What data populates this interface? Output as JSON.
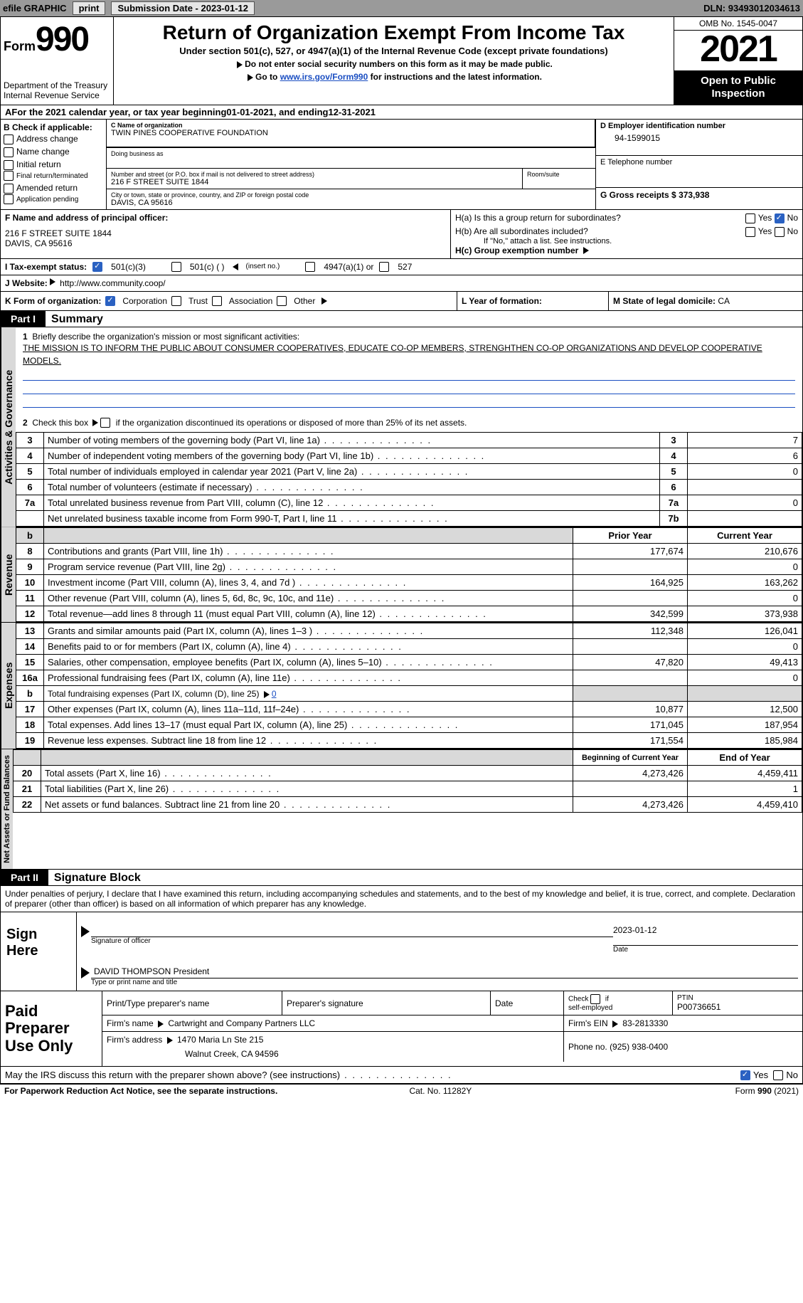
{
  "topbar": {
    "efile": "efile GRAPHIC",
    "print": "print",
    "sub_label": "Submission Date - ",
    "sub_date": "2023-01-12",
    "dln_label": "DLN: ",
    "dln": "93493012034613"
  },
  "header": {
    "form_word": "Form",
    "form_num": "990",
    "dept": "Department of the Treasury",
    "irs": "Internal Revenue Service",
    "title": "Return of Organization Exempt From Income Tax",
    "sub": "Under section 501(c), 527, or 4947(a)(1) of the Internal Revenue Code (except private foundations)",
    "note1": "Do not enter social security numbers on this form as it may be made public.",
    "note2_pre": "Go to ",
    "note2_link": "www.irs.gov/Form990",
    "note2_post": " for instructions and the latest information.",
    "omb": "OMB No. 1545-0047",
    "year": "2021",
    "inspection1": "Open to Public",
    "inspection2": "Inspection"
  },
  "periodA": {
    "text_pre": "For the 2021 calendar year, or tax year beginning ",
    "begin": "01-01-2021",
    "mid": " , and ending ",
    "end": "12-31-2021"
  },
  "boxB": {
    "title": "B Check if applicable:",
    "opts": [
      "Address change",
      "Name change",
      "Initial return",
      "Final return/terminated",
      "Amended return",
      "Application pending"
    ]
  },
  "boxC": {
    "name_label": "C Name of organization",
    "name": "TWIN PINES COOPERATIVE FOUNDATION",
    "dba_label": "Doing business as",
    "street_label": "Number and street (or P.O. box if mail is not delivered to street address)",
    "room_label": "Room/suite",
    "street": "216 F STREET SUITE 1844",
    "city_label": "City or town, state or province, country, and ZIP or foreign postal code",
    "city": "DAVIS, CA  95616"
  },
  "boxDE": {
    "d_label": "D Employer identification number",
    "d_val": "94-1599015",
    "e_label": "E Telephone number",
    "g_label": "G Gross receipts $ ",
    "g_val": "373,938"
  },
  "officer": {
    "f_label": "F  Name and address of principal officer:",
    "addr1": "216 F STREET SUITE 1844",
    "addr2": "DAVIS, CA  95616",
    "ha": "H(a)  Is this a group return for subordinates?",
    "hb": "H(b)  Are all subordinates included?",
    "hb_note": "If \"No,\" attach a list. See instructions.",
    "hc": "H(c)  Group exemption number",
    "yes": "Yes",
    "no": "No"
  },
  "status": {
    "i_label": "I  Tax-exempt status:",
    "s1": "501(c)(3)",
    "s2": "501(c) (  )",
    "s2b": "(insert no.)",
    "s3": "4947(a)(1) or",
    "s4": "527"
  },
  "website": {
    "j_label": "J  Website:",
    "url": "http://www.community.coop/"
  },
  "korg": {
    "k_label": "K Form of organization:",
    "opts": [
      "Corporation",
      "Trust",
      "Association",
      "Other"
    ],
    "l_label": "L Year of formation:",
    "m_label": "M State of legal domicile: ",
    "m_val": "CA"
  },
  "parts": {
    "p1": "Part I",
    "p1t": "Summary",
    "p2": "Part II",
    "p2t": "Signature Block"
  },
  "summary": {
    "q1": "Briefly describe the organization's mission or most significant activities:",
    "mission": "THE MISSION IS TO INFORM THE PUBLIC ABOUT CONSUMER COOPERATIVES, EDUCATE CO-OP MEMBERS, STRENGHTHEN CO-OP ORGANIZATIONS AND DEVELOP COOPERATIVE MODELS.",
    "q2": "Check this box      if the organization discontinued its operations or disposed of more than 25% of its net assets.",
    "rows": [
      {
        "n": "3",
        "t": "Number of voting members of the governing body (Part VI, line 1a)",
        "box": "3",
        "v": "7"
      },
      {
        "n": "4",
        "t": "Number of independent voting members of the governing body (Part VI, line 1b)",
        "box": "4",
        "v": "6"
      },
      {
        "n": "5",
        "t": "Total number of individuals employed in calendar year 2021 (Part V, line 2a)",
        "box": "5",
        "v": "0"
      },
      {
        "n": "6",
        "t": "Total number of volunteers (estimate if necessary)",
        "box": "6",
        "v": ""
      },
      {
        "n": "7a",
        "t": "Total unrelated business revenue from Part VIII, column (C), line 12",
        "box": "7a",
        "v": "0"
      },
      {
        "n": "",
        "t": "Net unrelated business taxable income from Form 990-T, Part I, line 11",
        "box": "7b",
        "v": ""
      }
    ],
    "col_prior": "Prior Year",
    "col_curr": "Current Year",
    "rev": [
      {
        "n": "8",
        "t": "Contributions and grants (Part VIII, line 1h)",
        "p": "177,674",
        "c": "210,676"
      },
      {
        "n": "9",
        "t": "Program service revenue (Part VIII, line 2g)",
        "p": "",
        "c": "0"
      },
      {
        "n": "10",
        "t": "Investment income (Part VIII, column (A), lines 3, 4, and 7d )",
        "p": "164,925",
        "c": "163,262"
      },
      {
        "n": "11",
        "t": "Other revenue (Part VIII, column (A), lines 5, 6d, 8c, 9c, 10c, and 11e)",
        "p": "",
        "c": "0"
      },
      {
        "n": "12",
        "t": "Total revenue—add lines 8 through 11 (must equal Part VIII, column (A), line 12)",
        "p": "342,599",
        "c": "373,938"
      }
    ],
    "exp": [
      {
        "n": "13",
        "t": "Grants and similar amounts paid (Part IX, column (A), lines 1–3 )",
        "p": "112,348",
        "c": "126,041"
      },
      {
        "n": "14",
        "t": "Benefits paid to or for members (Part IX, column (A), line 4)",
        "p": "",
        "c": "0"
      },
      {
        "n": "15",
        "t": "Salaries, other compensation, employee benefits (Part IX, column (A), lines 5–10)",
        "p": "47,820",
        "c": "49,413"
      },
      {
        "n": "16a",
        "t": "Professional fundraising fees (Part IX, column (A), line 11e)",
        "p": "",
        "c": "0"
      },
      {
        "n": "b",
        "t": "Total fundraising expenses (Part IX, column (D), line 25)    0",
        "p": "shade",
        "c": "shade"
      },
      {
        "n": "17",
        "t": "Other expenses (Part IX, column (A), lines 11a–11d, 11f–24e)",
        "p": "10,877",
        "c": "12,500"
      },
      {
        "n": "18",
        "t": "Total expenses. Add lines 13–17 (must equal Part IX, column (A), line 25)",
        "p": "171,045",
        "c": "187,954"
      },
      {
        "n": "19",
        "t": "Revenue less expenses. Subtract line 18 from line 12",
        "p": "171,554",
        "c": "185,984"
      }
    ],
    "col_begin": "Beginning of Current Year",
    "col_end": "End of Year",
    "net": [
      {
        "n": "20",
        "t": "Total assets (Part X, line 16)",
        "p": "4,273,426",
        "c": "4,459,411"
      },
      {
        "n": "21",
        "t": "Total liabilities (Part X, line 26)",
        "p": "",
        "c": "1"
      },
      {
        "n": "22",
        "t": "Net assets or fund balances. Subtract line 21 from line 20",
        "p": "4,273,426",
        "c": "4,459,410"
      }
    ],
    "tabs": {
      "ag": "Activities & Governance",
      "rev": "Revenue",
      "exp": "Expenses",
      "net": "Net Assets or Fund Balances"
    }
  },
  "sig": {
    "decl": "Under penalties of perjury, I declare that I have examined this return, including accompanying schedules and statements, and to the best of my knowledge and belief, it is true, correct, and complete. Declaration of preparer (other than officer) is based on all information of which preparer has any knowledge.",
    "sign_here": "Sign Here",
    "sig_officer": "Signature of officer",
    "date_l": "Date",
    "date_v": "2023-01-12",
    "name": "DAVID THOMPSON  President",
    "type_l": "Type or print name and title",
    "paid": "Paid Preparer Use Only",
    "pp_name": "Print/Type preparer's name",
    "pp_sig": "Preparer's signature",
    "pp_date": "Date",
    "pp_chk": "Check       if self-employed",
    "ptin_l": "PTIN",
    "ptin": "P00736651",
    "firm_name_l": "Firm's name   ",
    "firm_name": "Cartwright and Company Partners LLC",
    "firm_ein_l": "Firm's EIN   ",
    "firm_ein": "83-2813330",
    "firm_addr_l": "Firm's address   ",
    "firm_addr1": "1470 Maria Ln Ste 215",
    "firm_addr2": "Walnut Creek, CA  94596",
    "phone_l": "Phone no. ",
    "phone": "(925) 938-0400",
    "discuss": "May the IRS discuss this return with the preparer shown above? (see instructions)"
  },
  "footer": {
    "left": "For Paperwork Reduction Act Notice, see the separate instructions.",
    "cat": "Cat. No. 11282Y",
    "right": "Form 990 (2021)"
  }
}
